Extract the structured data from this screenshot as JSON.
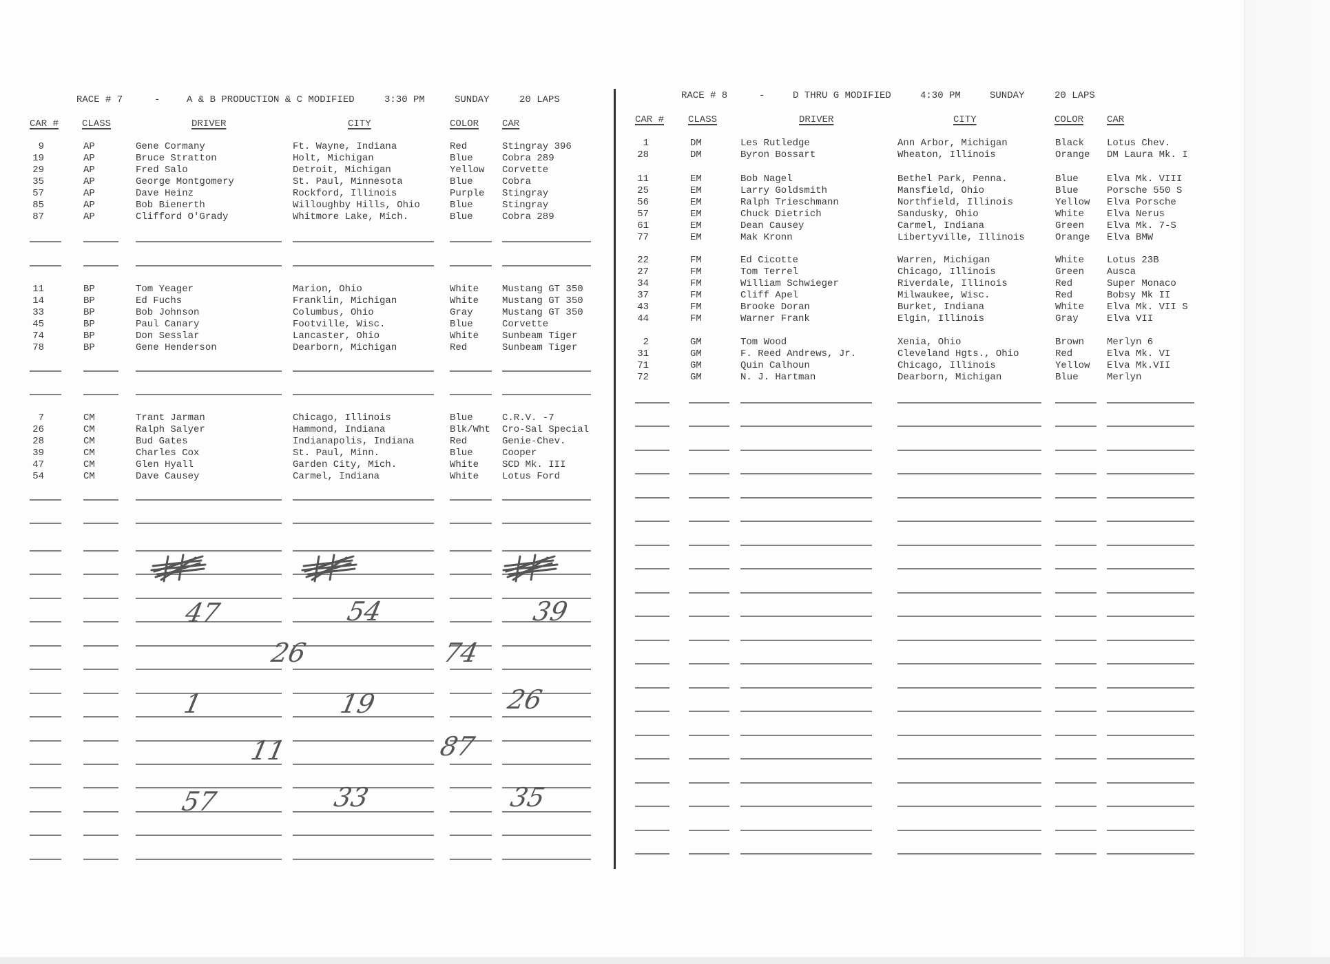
{
  "race7": {
    "race": "RACE # 7",
    "dash": "-",
    "classes": "A & B PRODUCTION & C MODIFIED",
    "time": "3:30 PM",
    "day": "SUNDAY",
    "laps": "20 LAPS",
    "headers": {
      "car_no": "CAR #",
      "class": "CLASS",
      "driver": "DRIVER",
      "city": "CITY",
      "color": "COLOR",
      "car": "CAR"
    },
    "groups": [
      {
        "rows": [
          {
            "car_no": "9",
            "class": "AP",
            "driver": "Gene Cormany",
            "city": "Ft. Wayne, Indiana",
            "color": "Red",
            "car": "Stingray 396"
          },
          {
            "car_no": "19",
            "class": "AP",
            "driver": "Bruce Stratton",
            "city": "Holt, Michigan",
            "color": "Blue",
            "car": "Cobra 289"
          },
          {
            "car_no": "29",
            "class": "AP",
            "driver": "Fred Salo",
            "city": "Detroit, Michigan",
            "color": "Yellow",
            "car": "Corvette"
          },
          {
            "car_no": "35",
            "class": "AP",
            "driver": "George Montgomery",
            "city": "St. Paul, Minnesota",
            "color": "Blue",
            "car": "Cobra"
          },
          {
            "car_no": "57",
            "class": "AP",
            "driver": "Dave Heinz",
            "city": "Rockford, Illinois",
            "color": "Purple",
            "car": "Stingray"
          },
          {
            "car_no": "85",
            "class": "AP",
            "driver": "Bob Bienerth",
            "city": "Willoughby Hills, Ohio",
            "color": "Blue",
            "car": "Stingray"
          },
          {
            "car_no": "87",
            "class": "AP",
            "driver": "Clifford O'Grady",
            "city": "Whitmore Lake, Mich.",
            "color": "Blue",
            "car": "Cobra 289"
          }
        ]
      },
      {
        "rows": [
          {
            "car_no": "11",
            "class": "BP",
            "driver": "Tom Yeager",
            "city": "Marion, Ohio",
            "color": "White",
            "car": "Mustang GT 350"
          },
          {
            "car_no": "14",
            "class": "BP",
            "driver": "Ed Fuchs",
            "city": "Franklin, Michigan",
            "color": "White",
            "car": "Mustang GT 350"
          },
          {
            "car_no": "33",
            "class": "BP",
            "driver": "Bob Johnson",
            "city": "Columbus, Ohio",
            "color": "Gray",
            "car": "Mustang GT 350"
          },
          {
            "car_no": "45",
            "class": "BP",
            "driver": "Paul Canary",
            "city": "Footville, Wisc.",
            "color": "Blue",
            "car": "Corvette"
          },
          {
            "car_no": "74",
            "class": "BP",
            "driver": "Don Sesslar",
            "city": "Lancaster, Ohio",
            "color": "White",
            "car": "Sunbeam Tiger"
          },
          {
            "car_no": "78",
            "class": "BP",
            "driver": "Gene Henderson",
            "city": "Dearborn, Michigan",
            "color": "Red",
            "car": "Sunbeam Tiger"
          }
        ]
      },
      {
        "rows": [
          {
            "car_no": "7",
            "class": "CM",
            "driver": "Trant Jarman",
            "city": "Chicago, Illinois",
            "color": "Blue",
            "car": "C.R.V. -7"
          },
          {
            "car_no": "26",
            "class": "CM",
            "driver": "Ralph Salyer",
            "city": "Hammond, Indiana",
            "color": "Blk/Wht",
            "car": "Cro-Sal Special"
          },
          {
            "car_no": "28",
            "class": "CM",
            "driver": "Bud Gates",
            "city": "Indianapolis, Indiana",
            "color": "Red",
            "car": "Genie-Chev."
          },
          {
            "car_no": "39",
            "class": "CM",
            "driver": "Charles Cox",
            "city": "St. Paul, Minn.",
            "color": "Blue",
            "car": "Cooper"
          },
          {
            "car_no": "47",
            "class": "CM",
            "driver": "Glen Hyall",
            "city": "Garden City, Mich.",
            "color": "White",
            "car": "SCD Mk. III"
          },
          {
            "car_no": "54",
            "class": "CM",
            "driver": "Dave Causey",
            "city": "Carmel, Indiana",
            "color": "White",
            "car": "Lotus Ford"
          }
        ]
      }
    ],
    "handwritten": [
      "47",
      "54",
      "39",
      "26",
      "74",
      "1",
      "19",
      "26",
      "11",
      "87",
      "57",
      "33",
      "35"
    ]
  },
  "race8": {
    "race": "RACE # 8",
    "dash": "-",
    "classes": "D THRU G MODIFIED",
    "time": "4:30 PM",
    "day": "SUNDAY",
    "laps": "20 LAPS",
    "headers": {
      "car_no": "CAR #",
      "class": "CLASS",
      "driver": "DRIVER",
      "city": "CITY",
      "color": "COLOR",
      "car": "CAR"
    },
    "groups": [
      {
        "rows": [
          {
            "car_no": "1",
            "class": "DM",
            "driver": "Les Rutledge",
            "city": "Ann Arbor, Michigan",
            "color": "Black",
            "car": "Lotus Chev."
          },
          {
            "car_no": "28",
            "class": "DM",
            "driver": "Byron Bossart",
            "city": "Wheaton, Illinois",
            "color": "Orange",
            "car": "DM Laura Mk. I"
          }
        ]
      },
      {
        "rows": [
          {
            "car_no": "11",
            "class": "EM",
            "driver": "Bob Nagel",
            "city": "Bethel Park, Penna.",
            "color": "Blue",
            "car": "Elva Mk. VIII"
          },
          {
            "car_no": "25",
            "class": "EM",
            "driver": "Larry Goldsmith",
            "city": "Mansfield, Ohio",
            "color": "Blue",
            "car": "Porsche 550 S"
          },
          {
            "car_no": "56",
            "class": "EM",
            "driver": "Ralph Trieschmann",
            "city": "Northfield, Illinois",
            "color": "Yellow",
            "car": "Elva Porsche"
          },
          {
            "car_no": "57",
            "class": "EM",
            "driver": "Chuck Dietrich",
            "city": "Sandusky, Ohio",
            "color": "White",
            "car": "Elva Nerus"
          },
          {
            "car_no": "61",
            "class": "EM",
            "driver": "Dean Causey",
            "city": "Carmel, Indiana",
            "color": "Green",
            "car": "Elva Mk. 7-S"
          },
          {
            "car_no": "77",
            "class": "EM",
            "driver": "Mak Kronn",
            "city": "Libertyville, Illinois",
            "color": "Orange",
            "car": "Elva BMW"
          }
        ]
      },
      {
        "rows": [
          {
            "car_no": "22",
            "class": "FM",
            "driver": "Ed Cicotte",
            "city": "Warren, Michigan",
            "color": "White",
            "car": "Lotus 23B"
          },
          {
            "car_no": "27",
            "class": "FM",
            "driver": "Tom Terrel",
            "city": "Chicago, Illinois",
            "color": "Green",
            "car": "Ausca"
          },
          {
            "car_no": "34",
            "class": "FM",
            "driver": "William Schwieger",
            "city": "Riverdale, Illinois",
            "color": "Red",
            "car": "Super Monaco"
          },
          {
            "car_no": "37",
            "class": "FM",
            "driver": "Cliff Apel",
            "city": "Milwaukee, Wisc.",
            "color": "Red",
            "car": "Bobsy Mk II"
          },
          {
            "car_no": "43",
            "class": "FM",
            "driver": "Brooke Doran",
            "city": "Burket, Indiana",
            "color": "White",
            "car": "Elva Mk. VII S"
          },
          {
            "car_no": "44",
            "class": "FM",
            "driver": "Warner Frank",
            "city": "Elgin, Illinois",
            "color": "Gray",
            "car": "Elva VII"
          }
        ]
      },
      {
        "rows": [
          {
            "car_no": "2",
            "class": "GM",
            "driver": "Tom Wood",
            "city": "Xenia, Ohio",
            "color": "Brown",
            "car": "Merlyn 6"
          },
          {
            "car_no": "31",
            "class": "GM",
            "driver": "F. Reed Andrews, Jr.",
            "city": "Cleveland Hgts., Ohio",
            "color": "Red",
            "car": "Elva Mk. VI"
          },
          {
            "car_no": "71",
            "class": "GM",
            "driver": "Quin Calhoun",
            "city": "Chicago, Illinois",
            "color": "Yellow",
            "car": "Elva Mk.VII"
          },
          {
            "car_no": "72",
            "class": "GM",
            "driver": "N. J. Hartman",
            "city": "Dearborn, Michigan",
            "color": "Blue",
            "car": "Merlyn"
          }
        ]
      }
    ]
  }
}
